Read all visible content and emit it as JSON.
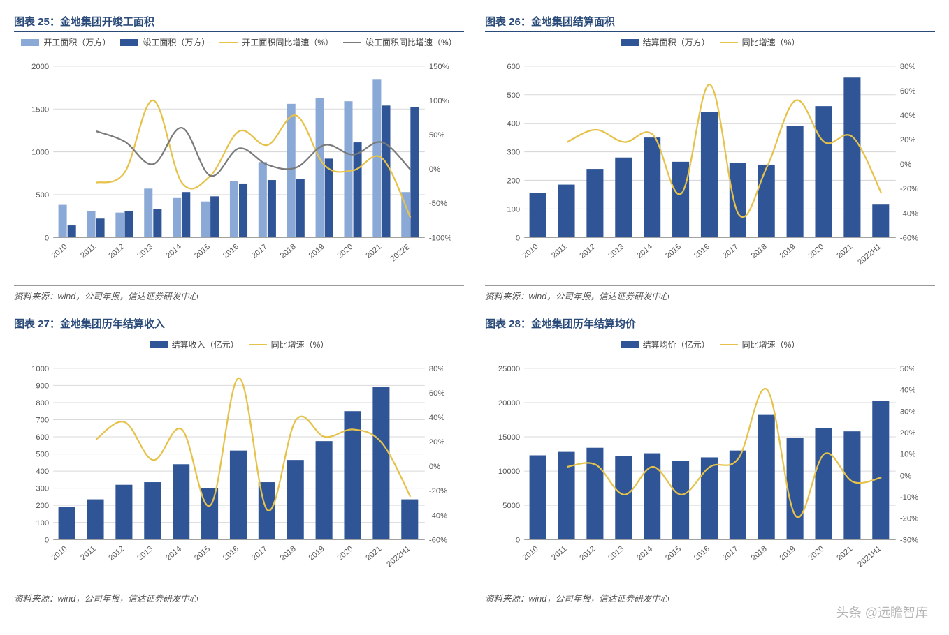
{
  "watermark": "头条 @远瞻智库",
  "shared": {
    "source_text": "资料来源：wind，公司年报，信达证券研发中心",
    "title_color": "#2a4a7a",
    "colors": {
      "bar_light": "#8aa9d6",
      "bar_dark": "#2f5597",
      "line_yellow": "#e6c24a",
      "line_gray": "#7a7a7a",
      "grid": "#d9d9d9",
      "axis": "#888888",
      "text": "#555555",
      "bg": "#ffffff"
    },
    "font_size_axis": 11,
    "font_size_legend": 12
  },
  "chart25": {
    "title": "图表 25：金地集团开竣工面积",
    "type": "bar+line-dual-axis",
    "categories": [
      "2010",
      "2011",
      "2012",
      "2013",
      "2014",
      "2015",
      "2016",
      "2017",
      "2018",
      "2019",
      "2020",
      "2021",
      "2022E"
    ],
    "series": {
      "bar1": {
        "label": "开工面积（万方）",
        "color": "#8aa9d6",
        "values": [
          380,
          310,
          290,
          570,
          460,
          420,
          660,
          880,
          1560,
          1630,
          1590,
          1850,
          530
        ]
      },
      "bar2": {
        "label": "竣工面积（万方）",
        "color": "#2f5597",
        "values": [
          140,
          220,
          310,
          330,
          530,
          480,
          630,
          670,
          680,
          920,
          1110,
          1540,
          1520
        ]
      },
      "line1": {
        "label": "开工面积同比增速（%）",
        "color": "#e6c24a",
        "values": [
          null,
          -20,
          -5,
          100,
          -20,
          -10,
          55,
          35,
          78,
          5,
          -2,
          16,
          -71
        ]
      },
      "line2": {
        "label": "竣工面积同比增速（%）",
        "color": "#7a7a7a",
        "values": [
          null,
          55,
          40,
          7,
          60,
          -10,
          30,
          6,
          2,
          35,
          21,
          39,
          -1
        ]
      }
    },
    "y_left": {
      "min": 0,
      "max": 2000,
      "step": 500,
      "label": ""
    },
    "y_right": {
      "min": -100,
      "max": 150,
      "step": 50,
      "suffix": "%"
    }
  },
  "chart26": {
    "title": "图表 26：金地集团结算面积",
    "type": "bar+line-dual-axis",
    "categories": [
      "2010",
      "2011",
      "2012",
      "2013",
      "2014",
      "2015",
      "2016",
      "2017",
      "2018",
      "2019",
      "2020",
      "2021",
      "2022H1"
    ],
    "series": {
      "bar1": {
        "label": "结算面积（万方）",
        "color": "#2f5597",
        "values": [
          155,
          185,
          240,
          280,
          350,
          265,
          440,
          260,
          255,
          390,
          460,
          560,
          115
        ]
      },
      "line1": {
        "label": "同比增速（%）",
        "color": "#e6c24a",
        "values": [
          null,
          18,
          28,
          18,
          24,
          -24,
          65,
          -41,
          -2,
          52,
          18,
          22,
          -24
        ]
      }
    },
    "y_left": {
      "min": 0,
      "max": 600,
      "step": 100
    },
    "y_right": {
      "min": -60,
      "max": 80,
      "step": 20,
      "suffix": "%"
    }
  },
  "chart27": {
    "title": "图表 27：金地集团历年结算收入",
    "type": "bar+line-dual-axis",
    "categories": [
      "2010",
      "2011",
      "2012",
      "2013",
      "2014",
      "2015",
      "2016",
      "2017",
      "2018",
      "2019",
      "2020",
      "2021",
      "2022H1"
    ],
    "series": {
      "bar1": {
        "label": "结算收入（亿元）",
        "color": "#2f5597",
        "values": [
          190,
          235,
          320,
          335,
          440,
          300,
          520,
          335,
          465,
          575,
          750,
          890,
          235
        ]
      },
      "line1": {
        "label": "同比增速（%）",
        "color": "#e6c24a",
        "values": [
          null,
          22,
          36,
          5,
          30,
          -32,
          72,
          -36,
          38,
          24,
          30,
          19,
          -25
        ]
      }
    },
    "y_left": {
      "min": 0,
      "max": 1000,
      "step": 100
    },
    "y_right": {
      "min": -60,
      "max": 80,
      "step": 20,
      "suffix": "%"
    }
  },
  "chart28": {
    "title": "图表 28：金地集团历年结算均价",
    "type": "bar+line-dual-axis",
    "categories": [
      "2010",
      "2011",
      "2012",
      "2013",
      "2014",
      "2015",
      "2016",
      "2017",
      "2018",
      "2019",
      "2020",
      "2021",
      "2021H1"
    ],
    "series": {
      "bar1": {
        "label": "结算均价（亿元）",
        "color": "#2f5597",
        "values": [
          12300,
          12800,
          13400,
          12200,
          12600,
          11500,
          12000,
          13000,
          18200,
          14800,
          16300,
          15800,
          20300
        ]
      },
      "line1": {
        "label": "同比增速（%）",
        "color": "#e6c24a",
        "values": [
          null,
          4,
          5,
          -9,
          4,
          -9,
          4,
          8,
          40,
          -19,
          10,
          -3,
          -1
        ]
      }
    },
    "y_left": {
      "min": 0,
      "max": 25000,
      "step": 5000
    },
    "y_right": {
      "min": -30,
      "max": 50,
      "step": 10,
      "suffix": "%"
    }
  }
}
